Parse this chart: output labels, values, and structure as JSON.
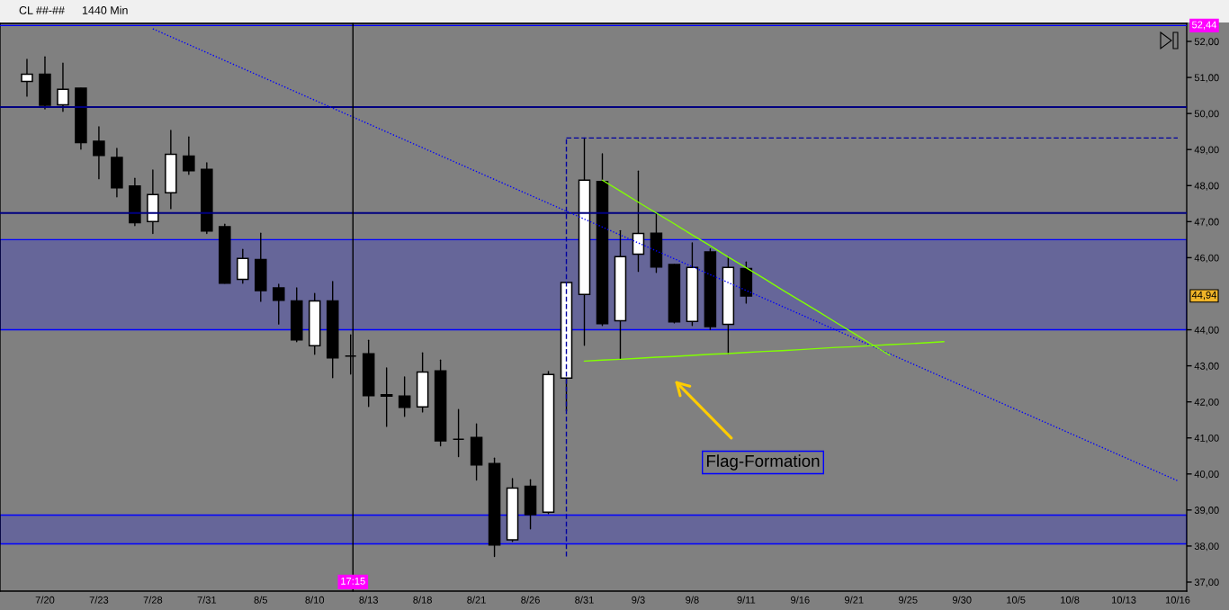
{
  "chart_data": {
    "type": "candlestick",
    "title": "CL ##-##",
    "subtitle": "1440 Min",
    "categories": [
      null,
      "7/20",
      null,
      null,
      "7/23",
      null,
      null,
      "7/28",
      null,
      null,
      "7/31",
      null,
      null,
      "8/5",
      null,
      null,
      "8/10",
      null,
      null,
      "8/13",
      null,
      null,
      "8/18",
      null,
      null,
      "8/21",
      null,
      null,
      "8/26",
      null,
      null,
      "8/31",
      null,
      null,
      "9/3",
      null,
      null,
      "9/8",
      null,
      null,
      "9/11",
      null,
      null,
      "9/16",
      null,
      null,
      "9/21",
      null,
      null,
      "9/25",
      null,
      null,
      "9/30",
      null,
      null,
      "10/5",
      null,
      null,
      "10/8",
      null,
      null,
      "10/13",
      null,
      null,
      "10/16"
    ],
    "ohlc": [
      [
        50.89,
        51.5,
        50.48,
        51.09
      ],
      [
        51.09,
        51.57,
        50.13,
        50.23
      ],
      [
        50.24,
        51.4,
        50.06,
        50.67
      ],
      [
        50.7,
        50.7,
        49.01,
        49.19
      ],
      [
        49.23,
        49.63,
        48.19,
        48.84
      ],
      [
        48.78,
        49.03,
        47.69,
        47.94
      ],
      [
        47.99,
        48.2,
        46.89,
        46.97
      ],
      [
        47.0,
        48.43,
        46.67,
        47.75
      ],
      [
        47.8,
        49.53,
        47.36,
        48.87
      ],
      [
        48.82,
        49.35,
        48.31,
        48.41
      ],
      [
        48.45,
        48.63,
        46.67,
        46.74
      ],
      [
        46.86,
        46.93,
        45.29,
        45.29
      ],
      [
        45.4,
        46.23,
        45.29,
        45.98
      ],
      [
        45.95,
        46.68,
        44.79,
        45.09
      ],
      [
        45.16,
        45.26,
        44.16,
        44.82
      ],
      [
        44.8,
        45.16,
        43.67,
        43.72
      ],
      [
        43.56,
        45.01,
        43.32,
        44.8
      ],
      [
        44.8,
        45.34,
        42.67,
        43.22
      ],
      [
        43.27,
        43.86,
        42.77,
        43.27
      ],
      [
        43.33,
        43.71,
        41.87,
        42.17
      ],
      [
        42.2,
        42.94,
        41.32,
        42.16
      ],
      [
        42.16,
        42.69,
        41.6,
        41.85
      ],
      [
        41.86,
        43.36,
        41.72,
        42.83
      ],
      [
        42.86,
        43.16,
        40.78,
        40.92
      ],
      [
        40.96,
        41.79,
        40.48,
        40.96
      ],
      [
        41.01,
        41.39,
        39.83,
        40.25
      ],
      [
        40.29,
        40.44,
        37.71,
        38.03
      ],
      [
        38.17,
        39.87,
        38.13,
        39.61
      ],
      [
        39.66,
        39.84,
        38.48,
        38.87
      ],
      [
        38.94,
        42.84,
        38.9,
        42.76
      ],
      [
        42.66,
        45.31,
        41.75,
        45.31
      ],
      [
        44.98,
        49.32,
        43.57,
        48.15
      ],
      [
        48.11,
        48.88,
        44.12,
        44.17
      ],
      [
        44.25,
        46.75,
        43.19,
        46.03
      ],
      [
        46.1,
        48.4,
        45.62,
        46.67
      ],
      [
        46.68,
        47.24,
        45.59,
        45.74
      ],
      [
        45.81,
        45.81,
        44.19,
        44.22
      ],
      [
        44.23,
        46.41,
        44.12,
        45.73
      ],
      [
        46.16,
        46.24,
        44.01,
        44.09
      ],
      [
        44.15,
        46.03,
        43.33,
        45.73
      ],
      [
        45.7,
        45.88,
        44.74,
        44.94
      ],
      null,
      null,
      null,
      null,
      null,
      null,
      null,
      null,
      null,
      null,
      null,
      null,
      null,
      null,
      null,
      null,
      null,
      null,
      null,
      null,
      null,
      null,
      null,
      null
    ],
    "colors": [
      "#ffffff",
      "#000000",
      "#ffffff",
      "#000000",
      "#000000",
      "#000000",
      "#000000",
      "#ffffff",
      "#ffffff",
      "#000000",
      "#000000",
      "#000000",
      "#ffffff",
      "#000000",
      "#000000",
      "#000000",
      "#ffffff",
      "#000000",
      "#000000",
      "#000000",
      "#000000",
      "#000000",
      "#ffffff",
      "#000000",
      "#000000",
      "#000000",
      "#000000",
      "#ffffff",
      "#000000",
      "#ffffff",
      "#ffffff",
      "#ffffff",
      "#000000",
      "#ffffff",
      "#ffffff",
      "#000000",
      "#000000",
      "#ffffff",
      "#000000",
      "#ffffff",
      "#000000",
      null,
      null,
      null,
      null,
      null,
      null,
      null,
      null,
      null,
      null,
      null,
      null,
      null,
      null,
      null,
      null,
      null,
      null,
      null,
      null,
      null,
      null,
      null,
      null
    ],
    "series": [
      {
        "type": "line",
        "color": "#0000ff",
        "line_style": "dotted",
        "values": [
          null,
          null,
          null,
          null,
          null,
          null,
          null,
          52.35,
          52.13,
          51.91,
          51.69,
          51.47,
          51.25,
          51.03,
          50.81,
          50.59,
          50.37,
          50.15,
          49.93,
          49.71,
          49.49,
          49.27,
          49.05,
          48.83,
          48.61,
          48.39,
          48.17,
          47.95,
          47.73,
          47.51,
          47.29,
          47.07,
          46.85,
          46.63,
          46.41,
          46.19,
          45.97,
          45.75,
          45.53,
          45.31,
          45.09,
          44.87,
          44.65,
          44.43,
          44.21,
          43.99,
          43.77,
          43.55,
          43.33,
          43.11,
          42.89,
          42.67,
          42.45,
          42.23,
          42.01,
          41.79,
          41.57,
          41.35,
          41.13,
          40.91,
          40.69,
          40.47,
          40.25,
          40.03,
          39.81
        ]
      },
      {
        "type": "line",
        "color": "#80ff00",
        "line_style": "solid",
        "values": [
          null,
          null,
          null,
          null,
          null,
          null,
          null,
          null,
          null,
          null,
          null,
          null,
          null,
          null,
          null,
          null,
          null,
          null,
          null,
          null,
          null,
          null,
          null,
          null,
          null,
          null,
          null,
          null,
          null,
          null,
          null,
          null,
          48.15,
          47.85,
          47.54,
          47.24,
          46.94,
          46.63,
          46.33,
          46.02,
          45.72,
          45.42,
          45.11,
          44.81,
          44.51,
          44.2,
          43.9,
          43.59,
          43.29,
          null,
          null,
          null,
          null,
          null,
          null,
          null,
          null,
          null,
          null,
          null,
          null,
          null,
          null,
          null,
          null
        ]
      },
      {
        "type": "line",
        "color": "#80ff00",
        "line_style": "solid",
        "values": [
          null,
          null,
          null,
          null,
          null,
          null,
          null,
          null,
          null,
          null,
          null,
          null,
          null,
          null,
          null,
          null,
          null,
          null,
          null,
          null,
          null,
          null,
          null,
          null,
          null,
          null,
          null,
          null,
          null,
          null,
          null,
          43.13,
          43.16,
          43.18,
          43.21,
          43.24,
          43.26,
          43.29,
          43.32,
          43.34,
          43.37,
          43.4,
          43.42,
          43.45,
          43.48,
          43.51,
          43.53,
          43.56,
          43.59,
          43.61,
          43.64,
          43.67,
          null,
          null,
          null,
          null,
          null,
          null,
          null,
          null,
          null,
          null,
          null,
          null,
          null
        ]
      },
      {
        "type": "line",
        "color": "#0000a0",
        "line_style": "dashed",
        "values": [
          null,
          null,
          null,
          null,
          null,
          null,
          null,
          null,
          null,
          null,
          null,
          null,
          null,
          null,
          null,
          null,
          null,
          null,
          null,
          null,
          null,
          null,
          null,
          null,
          null,
          null,
          null,
          null,
          null,
          null,
          49.32,
          49.32,
          49.32,
          49.32,
          49.32,
          49.32,
          49.32,
          49.32,
          49.32,
          49.32,
          49.32,
          49.32,
          49.32,
          49.32,
          49.32,
          49.32,
          49.32,
          49.32,
          49.32,
          49.32,
          49.32,
          49.32,
          49.32,
          49.32,
          49.32,
          49.32,
          49.32,
          49.32,
          49.32,
          49.32,
          49.32,
          49.32,
          49.32,
          49.32,
          49.32
        ],
        "errors": [
          null,
          null,
          null,
          null,
          null,
          null,
          null,
          null,
          null,
          null,
          null,
          null,
          null,
          null,
          null,
          null,
          null,
          null,
          null,
          null,
          null,
          null,
          null,
          null,
          null,
          null,
          null,
          null,
          null,
          null,
          [
            37.71,
            49.32
          ],
          null,
          null,
          null,
          null,
          null,
          null,
          null,
          null,
          null,
          null,
          null,
          null,
          null,
          null,
          null,
          null,
          null,
          null,
          null,
          null,
          null,
          null,
          null,
          null,
          null,
          null,
          null,
          null,
          null,
          null,
          null,
          null,
          null,
          null
        ]
      }
    ],
    "ref_lines": [
      {
        "axis": "y",
        "value": 52.44,
        "label": "52,44",
        "color": "#0000ff"
      },
      {
        "axis": "y",
        "value": 50.18,
        "color": "#000080"
      },
      {
        "axis": "y",
        "value": 47.24,
        "color": "#000080"
      }
    ],
    "bands": [
      {
        "axis": "y",
        "from": 44.0,
        "to": 46.5,
        "color": "#0000ff"
      },
      {
        "axis": "y",
        "from": 38.06,
        "to": 38.86,
        "color": "#0000ff"
      }
    ],
    "annotations": [
      "Flag-Formation",
      "17:15",
      "44,94"
    ],
    "ylim": [
      36.75,
      52.5
    ],
    "yticks": [
      {
        "value": 37,
        "label": "37,00"
      },
      {
        "value": 38,
        "label": "38,00"
      },
      {
        "value": 39,
        "label": "39,00"
      },
      {
        "value": 40,
        "label": "40,00"
      },
      {
        "value": 41,
        "label": "41,00"
      },
      {
        "value": 42,
        "label": "42,00"
      },
      {
        "value": 43,
        "label": "43,00"
      },
      {
        "value": 44,
        "label": "44,00"
      },
      {
        "value": 46,
        "label": "46,00"
      },
      {
        "value": 47,
        "label": "47,00"
      },
      {
        "value": 48,
        "label": "48,00"
      },
      {
        "value": 49,
        "label": "49,00"
      },
      {
        "value": 50,
        "label": "50,00"
      },
      {
        "value": 51,
        "label": "51,00"
      },
      {
        "value": 52,
        "label": "52,00"
      }
    ]
  }
}
